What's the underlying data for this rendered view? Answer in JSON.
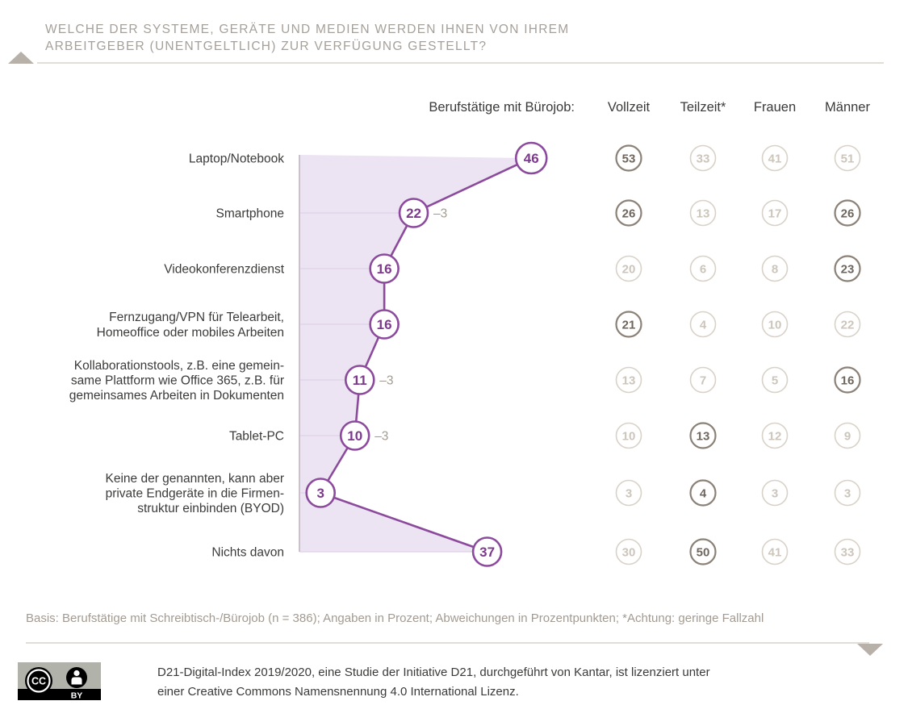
{
  "title": {
    "line1": "WELCHE DER SYSTEME, GERÄTE UND MEDIEN WERDEN IHNEN VON IHREM",
    "line2": "ARBEITGEBER (UNENTGELTLICH) ZUR VERFÜGUNG GESTELLT?"
  },
  "header": {
    "group_label": "Berufstätige mit Bürojob:",
    "columns": [
      "Vollzeit",
      "Teilzeit*",
      "Frauen",
      "Männer"
    ]
  },
  "chart_data": {
    "type": "line",
    "unit": "percent",
    "note": "Angaben in Prozent; Abweichungen in Prozentpunkten",
    "categories": [
      [
        "Laptop/Notebook"
      ],
      [
        "Smartphone"
      ],
      [
        "Videokonferenzdienst"
      ],
      [
        "Fernzugang/VPN für Telearbeit,",
        "Homeoffice oder mobiles Arbeiten"
      ],
      [
        "Kollaborationstools, z.B. eine gemein-",
        "same Plattform wie Office 365, z.B. für",
        "gemeinsames Arbeiten in Dokumenten"
      ],
      [
        "Tablet-PC"
      ],
      [
        "Keine der genannten, kann aber",
        "private Endgeräte in die Firmen-",
        "struktur einbinden (BYOD)"
      ],
      [
        "Nichts davon"
      ]
    ],
    "main_series": {
      "name": "Berufstätige mit Bürojob",
      "values": [
        46,
        22,
        16,
        16,
        11,
        10,
        3,
        37
      ],
      "diffs": [
        null,
        "–3",
        null,
        null,
        "–3",
        "–3",
        null,
        null
      ]
    },
    "column_series": [
      {
        "name": "Vollzeit",
        "values": [
          53,
          26,
          20,
          21,
          13,
          10,
          3,
          30
        ],
        "emphasis": [
          true,
          true,
          false,
          true,
          false,
          false,
          false,
          false
        ]
      },
      {
        "name": "Teilzeit*",
        "values": [
          33,
          13,
          6,
          4,
          7,
          13,
          4,
          50
        ],
        "emphasis": [
          false,
          false,
          false,
          false,
          false,
          true,
          true,
          true
        ]
      },
      {
        "name": "Frauen",
        "values": [
          41,
          17,
          8,
          10,
          5,
          12,
          3,
          41
        ],
        "emphasis": [
          false,
          false,
          false,
          false,
          false,
          false,
          false,
          false
        ]
      },
      {
        "name": "Männer",
        "values": [
          51,
          26,
          23,
          22,
          16,
          9,
          3,
          33
        ],
        "emphasis": [
          false,
          true,
          true,
          false,
          true,
          false,
          false,
          false
        ]
      }
    ],
    "colors": {
      "accent": "#8c4a9d",
      "accent_text": "#7d3a8d",
      "area_fill": "#ece4f2",
      "grid": "#ddd1e8",
      "edge": "#c9c3c9",
      "diff_text": "#a39b91",
      "emphasis_circle": "#8b8177",
      "emphasis_text": "#6e665e",
      "muted_circle": "#d8d2c9",
      "muted_text": "#ccc5bb",
      "label_text": "#3b3b3a"
    }
  },
  "footnote": "Basis: Berufstätige mit Schreibtisch-/Bürojob (n = 386); Angaben in Prozent; Abweichungen in Prozentpunkten; *Achtung: geringe Fallzahl",
  "license": {
    "cc_label": "CC",
    "by_label": "BY",
    "line1": "D21-Digital-Index 2019/2020, eine Studie der Initiative D21, durchgeführt von Kantar, ist lizenziert unter",
    "line2": "einer Creative Commons Namensnennung 4.0 International Lizenz."
  }
}
